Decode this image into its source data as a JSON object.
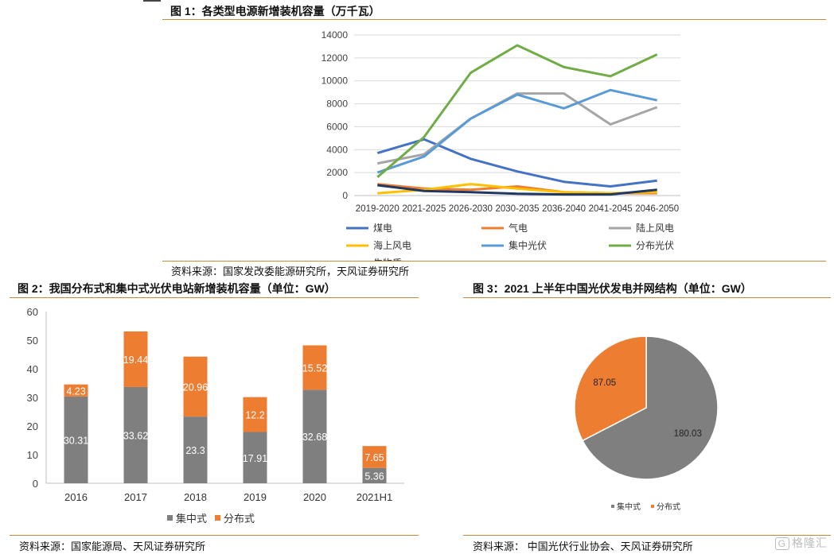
{
  "fig1": {
    "title": "图 1：各类型电源新增装机容量（万千瓦）",
    "source": "资料来源：国家发改委能源研究所，天风证券研究所"
  },
  "fig2": {
    "title": "图 2：我国分布式和集中式光伏电站新增装机容量（单位：GW）",
    "source": "资料来源：国家能源局、天风证券研究所"
  },
  "fig3": {
    "title": "图 3：2021 上半年中国光伏发电并网结构（单位：GW）",
    "source": "资料来源：  中国光伏行业协会、天风证券研究所"
  },
  "watermark": {
    "badge": "G",
    "text": "格隆汇"
  },
  "chart_data": [
    {
      "type": "line",
      "title": "",
      "xlabel": "",
      "ylabel": "",
      "categories": [
        "2019-2020",
        "2021-2025",
        "2026-2030",
        "2030-2035",
        "2036-2040",
        "2041-2045",
        "2046-2050"
      ],
      "ylim": [
        0,
        14000
      ],
      "yticks": [
        0,
        2000,
        4000,
        6000,
        8000,
        10000,
        12000,
        14000
      ],
      "grid": true,
      "legend_position": "bottom",
      "series": [
        {
          "name": "煤电",
          "color": "#4472c4",
          "values": [
            3700,
            4900,
            3200,
            2100,
            1200,
            800,
            1300
          ]
        },
        {
          "name": "气电",
          "color": "#ed7d31",
          "values": [
            1000,
            600,
            500,
            800,
            300,
            200,
            200
          ]
        },
        {
          "name": "陆上风电",
          "color": "#a5a5a5",
          "values": [
            2800,
            3600,
            6700,
            8900,
            8900,
            6200,
            7700
          ]
        },
        {
          "name": "海上风电",
          "color": "#ffc000",
          "values": [
            200,
            500,
            1000,
            600,
            300,
            200,
            300
          ]
        },
        {
          "name": "集中光伏",
          "color": "#5b9bd5",
          "values": [
            2000,
            3400,
            6700,
            8800,
            7600,
            9200,
            8300
          ]
        },
        {
          "name": "分布光伏",
          "color": "#70ad47",
          "values": [
            1600,
            5100,
            10700,
            13100,
            11200,
            10400,
            12300
          ]
        },
        {
          "name": "生物质",
          "color": "#1f3864",
          "values": [
            900,
            400,
            300,
            150,
            100,
            100,
            500
          ]
        }
      ]
    },
    {
      "type": "bar",
      "stacked": true,
      "title": "",
      "xlabel": "",
      "ylabel": "",
      "categories": [
        "2016",
        "2017",
        "2018",
        "2019",
        "2020",
        "2021H1"
      ],
      "ylim": [
        0,
        60
      ],
      "yticks": [
        0,
        10,
        20,
        30,
        40,
        50,
        60
      ],
      "grid": false,
      "legend_position": "bottom",
      "series": [
        {
          "name": "集中式",
          "color": "#7f7f7f",
          "values": [
            30.31,
            33.62,
            23.3,
            17.91,
            32.68,
            5.36
          ],
          "labels": [
            "30.31",
            "33.62",
            "23.3",
            "17.91",
            "32.68",
            "5.36"
          ]
        },
        {
          "name": "分布式",
          "color": "#ed7d31",
          "values": [
            4.23,
            19.44,
            20.96,
            12.2,
            15.52,
            7.65
          ],
          "labels": [
            "4.23",
            "19.44",
            "20.96",
            "12.2",
            "15.52",
            "7.65"
          ]
        }
      ]
    },
    {
      "type": "pie",
      "title": "",
      "legend_position": "bottom",
      "slices": [
        {
          "name": "集中式",
          "value": 180.03,
          "label": "180.03",
          "color": "#7f7f7f"
        },
        {
          "name": "分布式",
          "value": 87.05,
          "label": "87.05",
          "color": "#ed7d31"
        }
      ]
    }
  ]
}
